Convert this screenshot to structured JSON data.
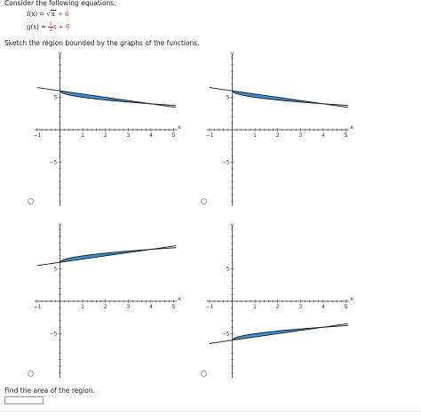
{
  "problem": {
    "intro": "Consider the following equations.",
    "f_label": "f(x) =",
    "f_radical_var": "x",
    "f_constant": "+ 6",
    "g_label": "g(x) =",
    "g_frac_num": "1",
    "g_frac_den": "2",
    "g_var": "x",
    "g_constant": "+ 6",
    "sketch_prompt": "Sketch the region bounded by the graphs of the functions.",
    "area_prompt": "Find the area of the region.",
    "area_value": ""
  },
  "axes_labels": {
    "y": "y",
    "x": "x",
    "x_ticks": [
      "−1",
      "1",
      "2",
      "3",
      "4",
      "5"
    ],
    "y_ticks": [
      "5",
      "−5"
    ]
  },
  "colors": {
    "region_fill": "#3d8fd6",
    "curve": "#1a1a1a",
    "axis": "#333333"
  },
  "options": [
    {
      "id": "option-a",
      "selected": false,
      "graph": "a"
    },
    {
      "id": "option-b",
      "selected": false,
      "graph": "b"
    },
    {
      "id": "option-c",
      "selected": false,
      "graph": "c"
    },
    {
      "id": "option-d",
      "selected": false,
      "graph": "d"
    }
  ],
  "chart_data": [
    {
      "type": "line",
      "xlim": [
        -1,
        5
      ],
      "ylim": [
        -10,
        10
      ],
      "series": [
        {
          "curve": "6 - sqrt(x)"
        },
        {
          "curve": "6 - x/2"
        }
      ],
      "shaded": [
        0,
        4
      ]
    },
    {
      "type": "line",
      "xlim": [
        -1,
        5
      ],
      "ylim": [
        -10,
        10
      ],
      "series": [
        {
          "curve": "6 - sqrt(x)"
        },
        {
          "curve": "6 - x/2"
        }
      ],
      "shaded": [
        0,
        4
      ]
    },
    {
      "type": "line",
      "xlim": [
        -1,
        5
      ],
      "ylim": [
        -10,
        10
      ],
      "series": [
        {
          "curve": "sqrt(x) + 6"
        },
        {
          "curve": "x/2 + 6"
        }
      ],
      "shaded": [
        0,
        4
      ]
    },
    {
      "type": "line",
      "xlim": [
        -1,
        5
      ],
      "ylim": [
        -10,
        10
      ],
      "series": [
        {
          "curve": "sqrt(x) - 6"
        },
        {
          "curve": "x/2 - 6"
        }
      ],
      "shaded": [
        0,
        4
      ]
    }
  ]
}
